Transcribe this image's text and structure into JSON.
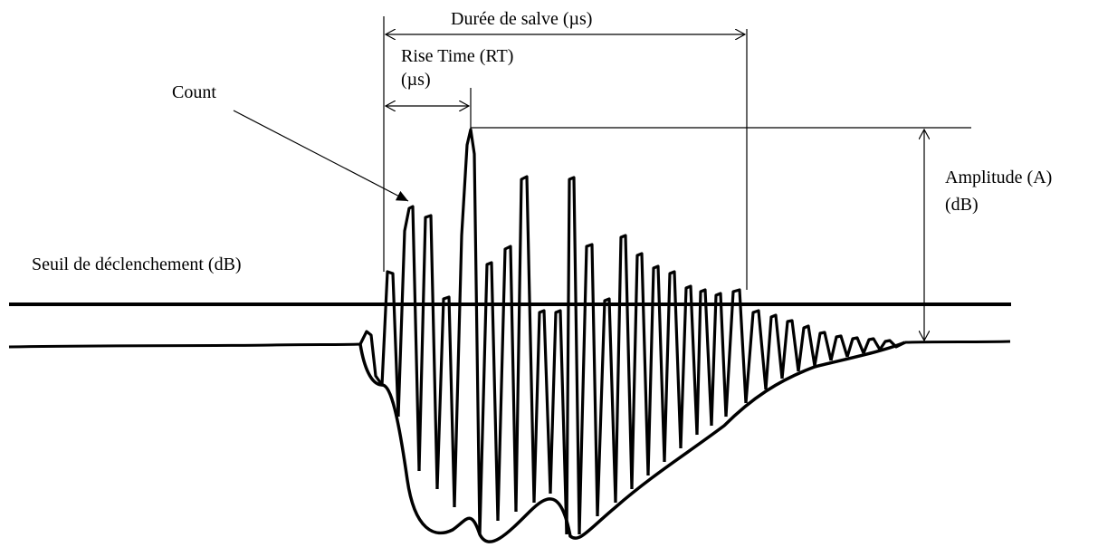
{
  "labels": {
    "burst_duration": "Durée de salve (µs)",
    "rise_time_line1": "Rise Time (RT)",
    "rise_time_line2": "(µs)",
    "count": "Count",
    "amplitude_line1": "Amplitude (A)",
    "amplitude_line2": "(dB)",
    "threshold": "Seuil de déclenchement (dB)"
  },
  "colors": {
    "ink": "#000000",
    "background": "#ffffff"
  }
}
